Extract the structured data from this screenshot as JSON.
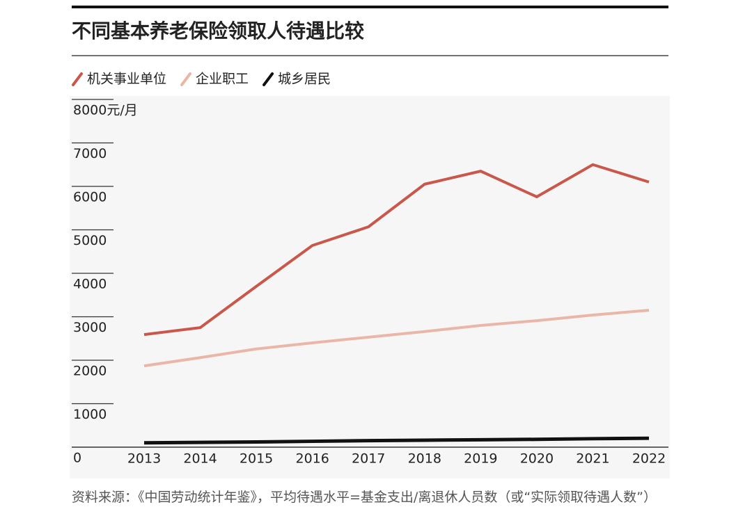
{
  "chart_data": {
    "type": "line",
    "title": "不同基本养老保险领取人待遇比较",
    "categories": [
      "2013",
      "2014",
      "2015",
      "2016",
      "2017",
      "2018",
      "2019",
      "2020",
      "2021",
      "2022"
    ],
    "series": [
      {
        "name": "机关事业单位",
        "color": "#c9574c",
        "values": [
          2590,
          2750,
          3700,
          4640,
          5070,
          6050,
          6350,
          5760,
          6500,
          6100
        ]
      },
      {
        "name": "企业职工",
        "color": "#e9b6a8",
        "values": [
          1870,
          2060,
          2260,
          2400,
          2530,
          2660,
          2800,
          2910,
          3040,
          3150
        ]
      },
      {
        "name": "城乡居民",
        "color": "#111111",
        "values": [
          100,
          110,
          120,
          135,
          150,
          160,
          170,
          180,
          195,
          205
        ]
      }
    ],
    "ylim": [
      0,
      8000
    ],
    "yticks": [
      0,
      1000,
      2000,
      3000,
      4000,
      5000,
      6000,
      7000,
      {
        "value": 8000,
        "label": "8000元/月"
      }
    ],
    "source": "资料来源：《中国劳动统计年鉴》，平均待遇水平=基金支出/离退休人员数（或“实际领取待遇人数”）"
  }
}
